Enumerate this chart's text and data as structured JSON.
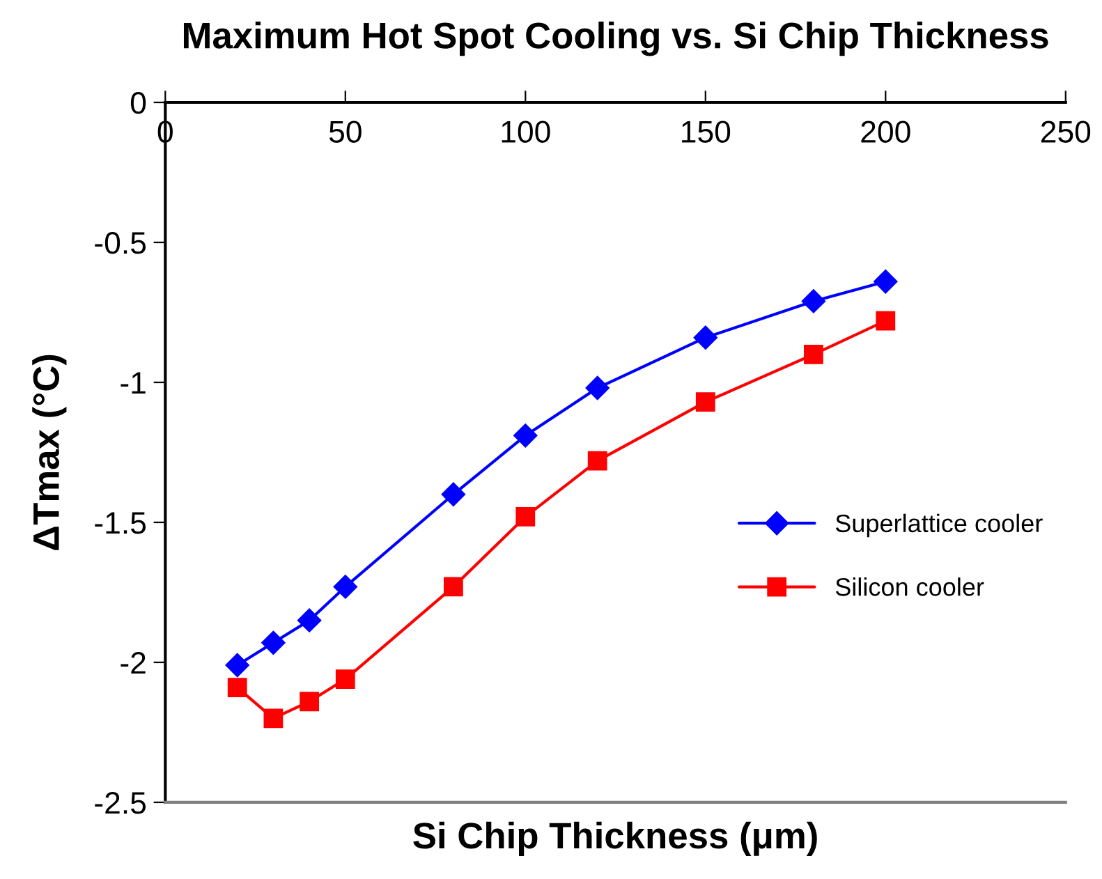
{
  "chart_data": {
    "type": "line",
    "title": "Maximum Hot Spot Cooling vs. Si Chip Thickness",
    "xlabel": "Si Chip Thickness (μm)",
    "ylabel": "ΔTmax (°C)",
    "x": [
      20,
      30,
      40,
      50,
      80,
      100,
      120,
      150,
      180,
      200
    ],
    "series": [
      {
        "name": "Superlattice cooler",
        "color": "#0000ff",
        "marker": "diamond",
        "values": [
          -2.01,
          -1.93,
          -1.85,
          -1.73,
          -1.4,
          -1.19,
          -1.02,
          -0.84,
          -0.71,
          -0.64
        ]
      },
      {
        "name": "Silicon cooler",
        "color": "#ff0000",
        "marker": "square",
        "values": [
          -2.09,
          -2.2,
          -2.14,
          -2.06,
          -1.73,
          -1.48,
          -1.28,
          -1.07,
          -0.9,
          -0.78
        ]
      }
    ],
    "xlim": [
      0,
      250
    ],
    "xticks": [
      0,
      50,
      100,
      150,
      200,
      250
    ],
    "ylim": [
      -2.5,
      0
    ],
    "yticks": [
      0,
      {
        "value": -0.5,
        "label": "-0.5"
      },
      {
        "value": -1,
        "label": "-1"
      },
      {
        "value": -1.5,
        "label": "-1.5"
      },
      {
        "value": -2,
        "label": "-2"
      },
      {
        "value": -2.5,
        "label": "-2.5"
      }
    ],
    "grid": false,
    "legend": "right",
    "line_style": "solid"
  }
}
